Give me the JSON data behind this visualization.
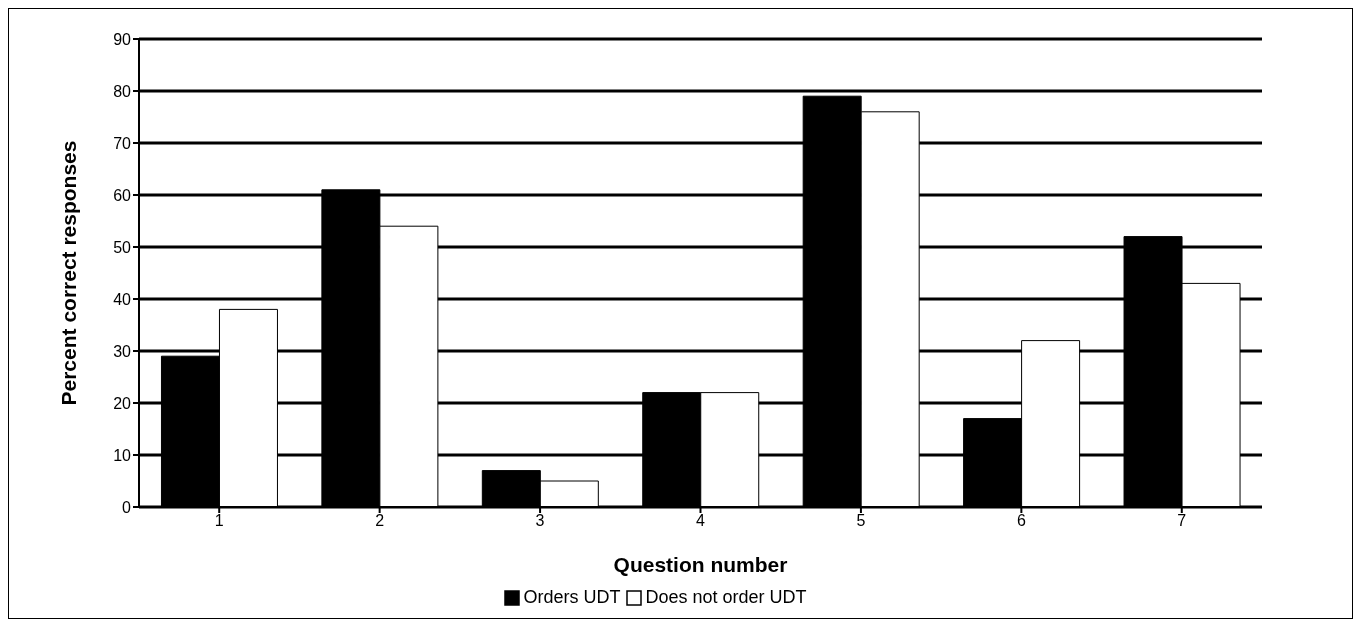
{
  "chart_data": {
    "type": "bar",
    "xlabel": "Question number",
    "ylabel": "Percent correct responses",
    "categories": [
      "1",
      "2",
      "3",
      "4",
      "5",
      "6",
      "7"
    ],
    "series": [
      {
        "name": "Orders UDT",
        "color": "#000000",
        "values": [
          29,
          61,
          7,
          22,
          79,
          17,
          52
        ]
      },
      {
        "name": "Does not order UDT",
        "color": "#ffffff",
        "values": [
          38,
          54,
          5,
          22,
          76,
          32,
          43
        ]
      }
    ],
    "ylim": [
      0,
      90
    ],
    "yticks": [
      0,
      10,
      20,
      30,
      40,
      50,
      60,
      70,
      80,
      90
    ],
    "grid": "y",
    "legend": "bottom"
  }
}
